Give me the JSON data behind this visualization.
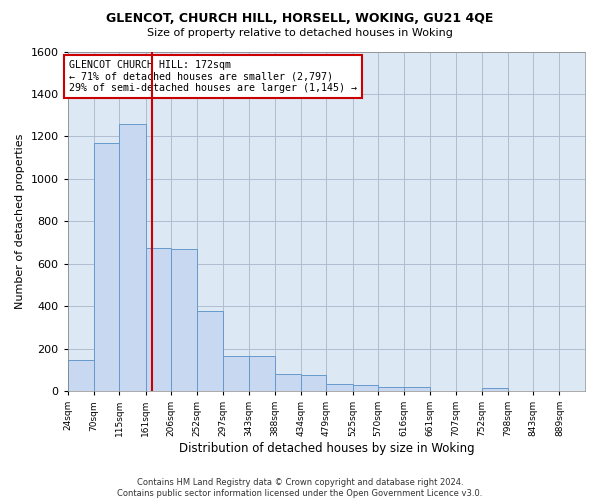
{
  "title1": "GLENCOT, CHURCH HILL, HORSELL, WOKING, GU21 4QE",
  "title2": "Size of property relative to detached houses in Woking",
  "xlabel": "Distribution of detached houses by size in Woking",
  "ylabel": "Number of detached properties",
  "footer1": "Contains HM Land Registry data © Crown copyright and database right 2024.",
  "footer2": "Contains public sector information licensed under the Open Government Licence v3.0.",
  "annotation_line1": "GLENCOT CHURCH HILL: 172sqm",
  "annotation_line2": "← 71% of detached houses are smaller (2,797)",
  "annotation_line3": "29% of semi-detached houses are larger (1,145) →",
  "property_size": 172,
  "bin_edges": [
    24,
    70,
    115,
    161,
    206,
    252,
    297,
    343,
    388,
    434,
    479,
    525,
    570,
    616,
    661,
    707,
    752,
    798,
    843,
    889,
    934
  ],
  "bar_heights": [
    145,
    1170,
    1260,
    675,
    670,
    375,
    165,
    165,
    80,
    75,
    35,
    30,
    20,
    20,
    0,
    0,
    15,
    0,
    0,
    0
  ],
  "bar_color": "#c8d8f0",
  "bar_edgecolor": "#6699cc",
  "vline_color": "#cc0000",
  "annotation_box_color": "#cc0000",
  "grid_color": "#b0bcd0",
  "background_color": "#dde8f5",
  "ylim": [
    0,
    1600
  ],
  "yticks": [
    0,
    200,
    400,
    600,
    800,
    1000,
    1200,
    1400,
    1600
  ]
}
